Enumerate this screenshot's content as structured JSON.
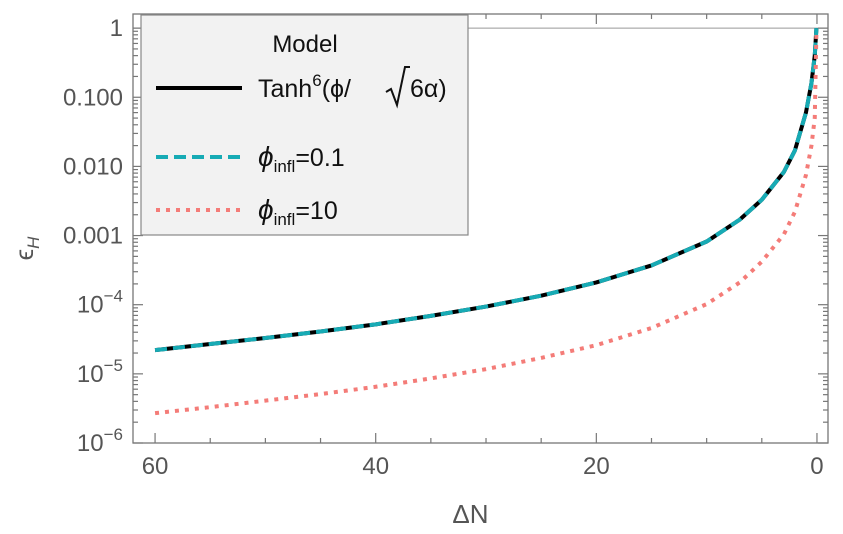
{
  "chart_data": {
    "type": "line",
    "title": "",
    "xlabel": "ΔN",
    "ylabel": "ϵ_H",
    "xlim": [
      62,
      -1
    ],
    "x_reversed": true,
    "ylim": [
      1e-06,
      1.6
    ],
    "y_scale": "log",
    "grid": false,
    "x_ticks": [
      {
        "value": 60,
        "label": "60"
      },
      {
        "value": 40,
        "label": "40"
      },
      {
        "value": 20,
        "label": "20"
      },
      {
        "value": 0,
        "label": "0"
      }
    ],
    "y_ticks": [
      {
        "value": 1e-06,
        "base": "10",
        "exp": "−6",
        "label": ""
      },
      {
        "value": 1e-05,
        "base": "10",
        "exp": "−5",
        "label": ""
      },
      {
        "value": 0.0001,
        "base": "10",
        "exp": "−4",
        "label": ""
      },
      {
        "value": 0.001,
        "base": "",
        "exp": "",
        "label": "0.001"
      },
      {
        "value": 0.01,
        "base": "",
        "exp": "",
        "label": "0.010"
      },
      {
        "value": 0.1,
        "base": "",
        "exp": "",
        "label": "0.100"
      },
      {
        "value": 1,
        "base": "",
        "exp": "",
        "label": "1"
      }
    ],
    "reference_line": {
      "y": 1
    },
    "legend": {
      "placement": "top-left",
      "title": "Model",
      "entries": [
        {
          "label_main": "Tanh",
          "label_sup": "6",
          "label_rest": "(ϕ/",
          "label_sqrt": "6α",
          "label_close": ")"
        },
        {
          "label_main": "ϕ",
          "label_sub": "infl",
          "label_rest": "=0.1"
        },
        {
          "label_main": "ϕ",
          "label_sub": "infl",
          "label_rest": "=10"
        }
      ]
    },
    "series": [
      {
        "name": "Tanh6(ϕ/√6α)",
        "color": "#000000",
        "style": "solid",
        "x": [
          60,
          55,
          50,
          45,
          40,
          35,
          30,
          25,
          20,
          15,
          10,
          7,
          5,
          3,
          2,
          1,
          0.5,
          0.2,
          0.05
        ],
        "y": [
          2.2e-05,
          2.7e-05,
          3.3e-05,
          4.1e-05,
          5.2e-05,
          6.9e-05,
          9.4e-05,
          0.000135,
          0.00021,
          0.00037,
          0.00082,
          0.0017,
          0.0033,
          0.0083,
          0.017,
          0.06,
          0.16,
          0.4,
          1
        ]
      },
      {
        "name": "ϕinfl=0.1",
        "color": "#17abb5",
        "style": "dashed",
        "x": [
          60,
          55,
          50,
          45,
          40,
          35,
          30,
          25,
          20,
          15,
          10,
          7,
          5,
          3,
          2,
          1,
          0.5,
          0.2,
          0.05
        ],
        "y": [
          2.2e-05,
          2.7e-05,
          3.3e-05,
          4.1e-05,
          5.2e-05,
          6.9e-05,
          9.4e-05,
          0.000135,
          0.00021,
          0.00037,
          0.00082,
          0.0017,
          0.0033,
          0.0083,
          0.017,
          0.06,
          0.16,
          0.4,
          1
        ]
      },
      {
        "name": "ϕinfl=10",
        "color": "#f47c78",
        "style": "dotted",
        "x": [
          60,
          55,
          50,
          45,
          40,
          35,
          30,
          25,
          20,
          15,
          10,
          7,
          5,
          3,
          2,
          1,
          0.5,
          0.2,
          0.05
        ],
        "y": [
          2.7e-06,
          3.3e-06,
          4.1e-06,
          5.1e-06,
          6.5e-06,
          8.6e-06,
          1.17e-05,
          1.7e-05,
          2.6e-05,
          4.6e-05,
          0.000102,
          0.00021,
          0.00042,
          0.00104,
          0.0022,
          0.0075,
          0.02,
          0.05,
          0.9
        ]
      }
    ]
  }
}
